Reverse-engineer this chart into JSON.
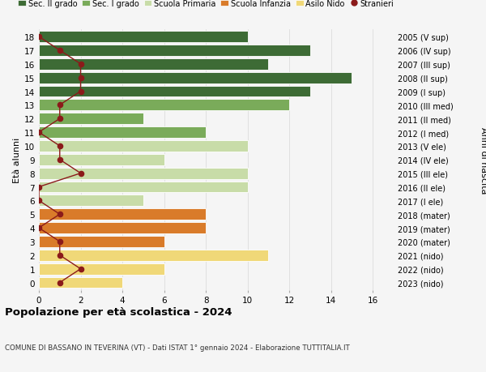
{
  "ages": [
    18,
    17,
    16,
    15,
    14,
    13,
    12,
    11,
    10,
    9,
    8,
    7,
    6,
    5,
    4,
    3,
    2,
    1,
    0
  ],
  "years": [
    "2005 (V sup)",
    "2006 (IV sup)",
    "2007 (III sup)",
    "2008 (II sup)",
    "2009 (I sup)",
    "2010 (III med)",
    "2011 (II med)",
    "2012 (I med)",
    "2013 (V ele)",
    "2014 (IV ele)",
    "2015 (III ele)",
    "2016 (II ele)",
    "2017 (I ele)",
    "2018 (mater)",
    "2019 (mater)",
    "2020 (mater)",
    "2021 (nido)",
    "2022 (nido)",
    "2023 (nido)"
  ],
  "bar_values": [
    10,
    13,
    11,
    15,
    13,
    12,
    5,
    8,
    10,
    6,
    10,
    10,
    5,
    8,
    8,
    6,
    11,
    6,
    4
  ],
  "bar_colors": [
    "#3d6b35",
    "#3d6b35",
    "#3d6b35",
    "#3d6b35",
    "#3d6b35",
    "#7aab5a",
    "#7aab5a",
    "#7aab5a",
    "#c8dca8",
    "#c8dca8",
    "#c8dca8",
    "#c8dca8",
    "#c8dca8",
    "#d97b2a",
    "#d97b2a",
    "#d97b2a",
    "#f0d878",
    "#f0d878",
    "#f0d878"
  ],
  "stranieri_values": [
    0,
    1,
    2,
    2,
    2,
    1,
    1,
    0,
    1,
    1,
    2,
    0,
    0,
    1,
    0,
    1,
    1,
    2,
    1
  ],
  "stranieri_color": "#8b1a1a",
  "legend_labels": [
    "Sec. II grado",
    "Sec. I grado",
    "Scuola Primaria",
    "Scuola Infanzia",
    "Asilo Nido",
    "Stranieri"
  ],
  "legend_colors": [
    "#3d6b35",
    "#7aab5a",
    "#c8dca8",
    "#d97b2a",
    "#f0d878",
    "#8b1a1a"
  ],
  "ylabel_left": "Età alunni",
  "ylabel_right": "Anni di nascita",
  "title": "Popolazione per età scolastica - 2024",
  "subtitle": "COMUNE DI BASSANO IN TEVERINA (VT) - Dati ISTAT 1° gennaio 2024 - Elaborazione TUTTITALIA.IT",
  "xlim": [
    0,
    17
  ],
  "ylim_min": -0.55,
  "ylim_max": 18.55,
  "background_color": "#f5f5f5",
  "grid_color": "#dddddd",
  "bar_height": 0.82
}
